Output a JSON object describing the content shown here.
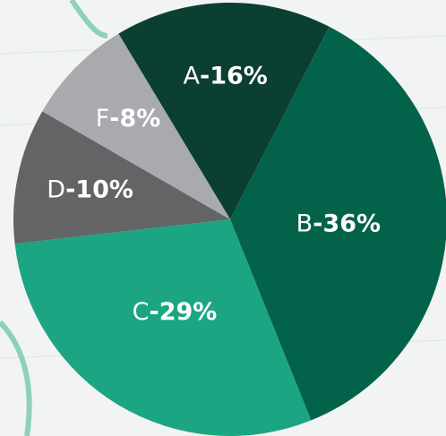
{
  "chart_data": {
    "type": "pie",
    "categories": [
      "A",
      "B",
      "C",
      "D",
      "F"
    ],
    "separator": "-",
    "values": [
      16,
      36,
      29,
      10,
      8
    ],
    "value_labels": [
      "16%",
      "36%",
      "29%",
      "10%",
      "8%"
    ],
    "colors": [
      "#0b3f31",
      "#03634a",
      "#1ba583",
      "#636466",
      "#a9aaae"
    ],
    "start_angle": -31
  }
}
